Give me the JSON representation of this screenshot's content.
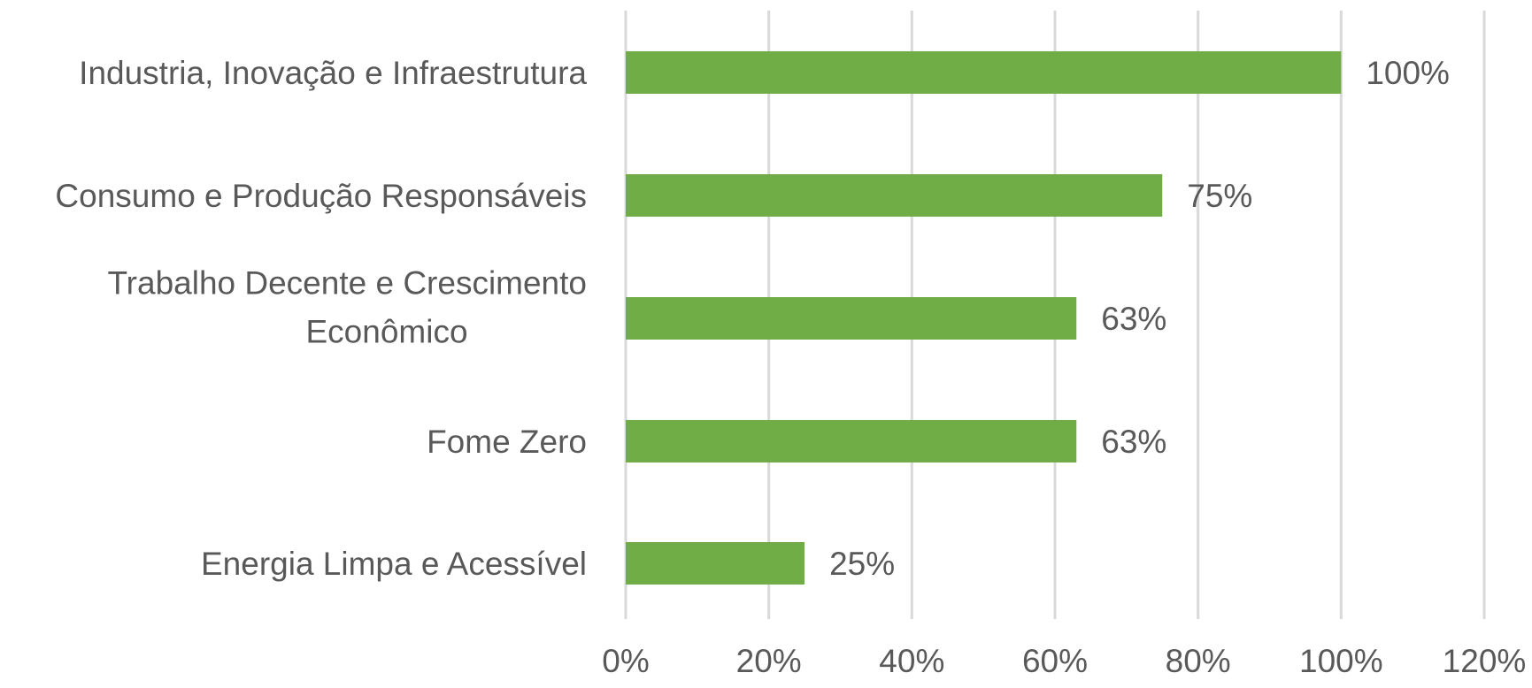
{
  "chart_data": {
    "type": "bar",
    "orientation": "horizontal",
    "categories": [
      "Industria, Inovação e Infraestrutura",
      "Consumo e Produção Responsáveis",
      "Trabalho Decente e Crescimento Econômico",
      "Fome Zero",
      "Energia Limpa e Acessível"
    ],
    "category_lines": [
      [
        "Industria, Inovação e Infraestrutura"
      ],
      [
        "Consumo e Produção Responsáveis"
      ],
      [
        "Trabalho Decente e Crescimento",
        "Econômico"
      ],
      [
        "Fome Zero"
      ],
      [
        "Energia Limpa e Acessível"
      ]
    ],
    "values": [
      100,
      75,
      63,
      63,
      25
    ],
    "data_labels": [
      "100%",
      "75%",
      "63%",
      "63%",
      "25%"
    ],
    "x_ticks": [
      "0%",
      "20%",
      "40%",
      "60%",
      "80%",
      "100%",
      "120%"
    ],
    "xlim": [
      0,
      120
    ],
    "grid": "vertical",
    "legend": "none",
    "title": "",
    "xlabel": "",
    "ylabel": "",
    "colors": {
      "bar": "#70ad47",
      "grid": "#d9d9d9",
      "text": "#595959"
    }
  }
}
